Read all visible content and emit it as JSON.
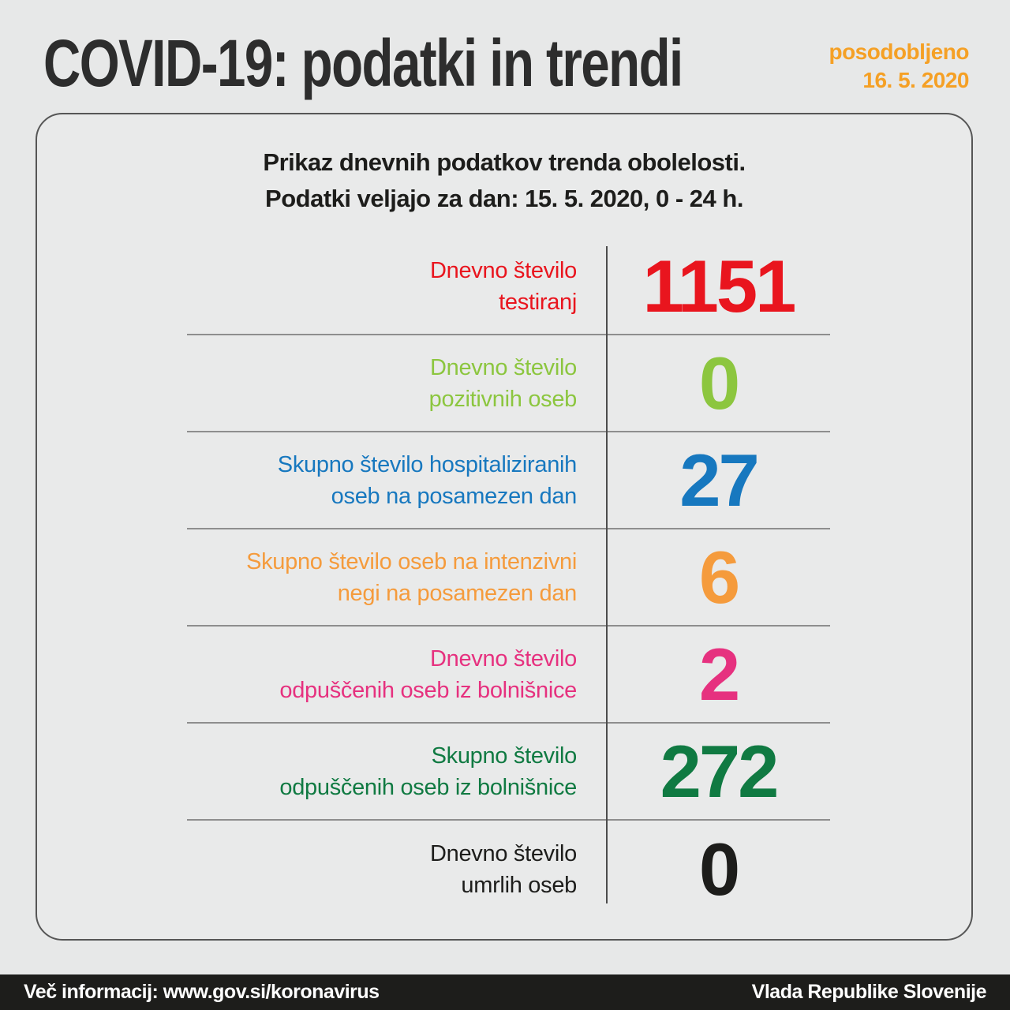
{
  "header": {
    "title": "COVID-19: podatki in trendi",
    "updated_label": "posodobljeno",
    "updated_date": "16. 5. 2020"
  },
  "card": {
    "header_line1": "Prikaz dnevnih podatkov trenda obolelosti.",
    "header_line2": "Podatki veljajo za dan: 15. 5. 2020, 0 - 24 h.",
    "rows": [
      {
        "lines": [
          "Dnevno število",
          "testiranj"
        ],
        "value": "1151",
        "color": "#e9151e"
      },
      {
        "lines": [
          "Dnevno število",
          "pozitivnih oseb"
        ],
        "value": "0",
        "color": "#8cc63f"
      },
      {
        "lines": [
          "Skupno število hospitaliziranih",
          "oseb na posamezen dan"
        ],
        "value": "27",
        "color": "#1778bf"
      },
      {
        "lines": [
          "Skupno število oseb na intenzivni",
          "negi na posamezen dan"
        ],
        "value": "6",
        "color": "#f59b3c"
      },
      {
        "lines": [
          "Dnevno število",
          "odpuščenih oseb iz bolnišnice"
        ],
        "value": "2",
        "color": "#e6317f"
      },
      {
        "lines": [
          "Skupno število",
          "odpuščenih oseb iz bolnišnice"
        ],
        "value": "272",
        "color": "#107a42"
      },
      {
        "lines": [
          "Dnevno število",
          "umrlih oseb"
        ],
        "value": "0",
        "color": "#1d1d1b"
      }
    ]
  },
  "footer": {
    "left": "Več informacij: www.gov.si/koronavirus",
    "right": "Vlada Republike Slovenije"
  },
  "colors": {
    "page_background": "#e7e8e8",
    "accent_orange": "#f5a025",
    "title_text": "#2d2d2d",
    "card_border": "#565656",
    "row_separator": "#8e8e8e",
    "column_divider": "#4c4c4c",
    "footer_background": "#1d1d1b",
    "footer_text": "#ffffff"
  }
}
